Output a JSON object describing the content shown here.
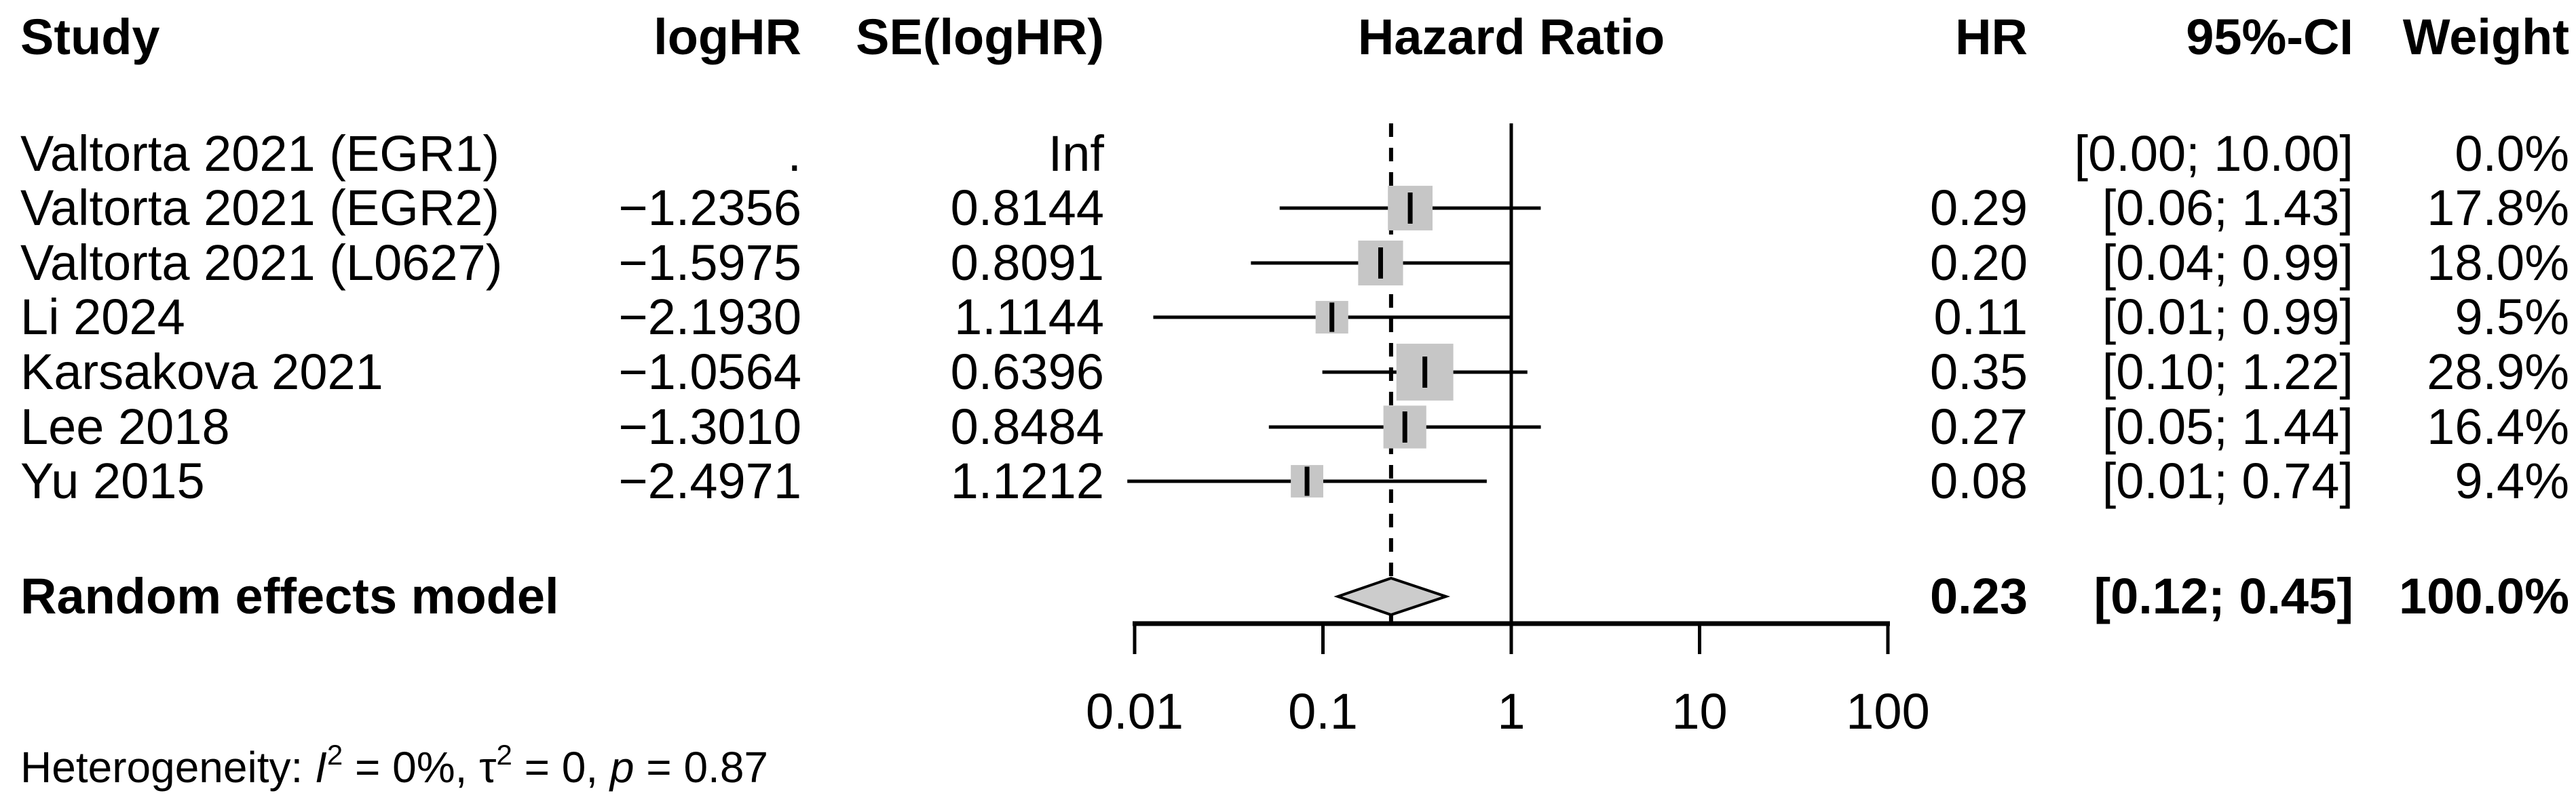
{
  "header": {
    "study": "Study",
    "loghr": "logHR",
    "se": "SE(logHR)",
    "plot": "Hazard Ratio",
    "hr": "HR",
    "ci": "95%-CI",
    "weight": "Weight"
  },
  "studies": [
    {
      "name": "Valtorta 2021 (EGR1)",
      "loghr": ".",
      "se": "Inf",
      "hr": "",
      "ci": "[0.00; 10.00]",
      "weight": "0.0%"
    },
    {
      "name": "Valtorta 2021 (EGR2)",
      "loghr": "−1.2356",
      "se": "0.8144",
      "hr": "0.29",
      "ci": "[0.06; 1.43]",
      "weight": "17.8%"
    },
    {
      "name": "Valtorta 2021 (L0627)",
      "loghr": "−1.5975",
      "se": "0.8091",
      "hr": "0.20",
      "ci": "[0.04; 0.99]",
      "weight": "18.0%"
    },
    {
      "name": "Li 2024",
      "loghr": "−2.1930",
      "se": "1.1144",
      "hr": "0.11",
      "ci": "[0.01; 0.99]",
      "weight": "9.5%"
    },
    {
      "name": "Karsakova 2021",
      "loghr": "−1.0564",
      "se": "0.6396",
      "hr": "0.35",
      "ci": "[0.10; 1.22]",
      "weight": "28.9%"
    },
    {
      "name": "Lee 2018",
      "loghr": "−1.3010",
      "se": "0.8484",
      "hr": "0.27",
      "ci": "[0.05; 1.44]",
      "weight": "16.4%"
    },
    {
      "name": "Yu 2015",
      "loghr": "−2.4971",
      "se": "1.1212",
      "hr": "0.08",
      "ci": "[0.01; 0.74]",
      "weight": "9.4%"
    }
  ],
  "pooled": {
    "name": "Random effects model",
    "hr": "0.23",
    "ci": "[0.12; 0.45]",
    "weight": "100.0%"
  },
  "heterogeneity": {
    "prefix": "Heterogeneity: ",
    "i": "I",
    "sup1": "2",
    "mid1": " = 0%, ",
    "tau": "τ",
    "sup2": "2",
    "mid2": " = 0, ",
    "p": "p",
    "end": " = 0.87"
  },
  "axis": {
    "tick_labels": [
      "0.01",
      "0.1",
      "1",
      "10",
      "100"
    ]
  },
  "colors": {
    "square": "#c6c6c6",
    "diamond_fill": "#cccccc",
    "line": "#000000"
  },
  "chart_data": {
    "type": "forest",
    "title": "Hazard Ratio",
    "x_axis": {
      "scale": "log10",
      "range": [
        0.01,
        100
      ],
      "ticks": [
        0.01,
        0.1,
        1,
        10,
        100
      ]
    },
    "reference_line": 1,
    "pooled_estimate_line": 0.23,
    "studies": [
      {
        "name": "Valtorta 2021 (EGR1)",
        "logHR": null,
        "SE": null,
        "hr": null,
        "ci": [
          0.0,
          10.0
        ],
        "weight_pct": 0.0,
        "plotted": false
      },
      {
        "name": "Valtorta 2021 (EGR2)",
        "logHR": -1.2356,
        "SE": 0.8144,
        "hr": 0.29,
        "ci": [
          0.06,
          1.43
        ],
        "weight_pct": 17.8,
        "plotted": true
      },
      {
        "name": "Valtorta 2021 (L0627)",
        "logHR": -1.5975,
        "SE": 0.8091,
        "hr": 0.2,
        "ci": [
          0.04,
          0.99
        ],
        "weight_pct": 18.0,
        "plotted": true
      },
      {
        "name": "Li 2024",
        "logHR": -2.193,
        "SE": 1.1144,
        "hr": 0.11,
        "ci": [
          0.01,
          0.99
        ],
        "weight_pct": 9.5,
        "plotted": true
      },
      {
        "name": "Karsakova 2021",
        "logHR": -1.0564,
        "SE": 0.6396,
        "hr": 0.35,
        "ci": [
          0.1,
          1.22
        ],
        "weight_pct": 28.9,
        "plotted": true
      },
      {
        "name": "Lee 2018",
        "logHR": -1.301,
        "SE": 0.8484,
        "hr": 0.27,
        "ci": [
          0.05,
          1.44
        ],
        "weight_pct": 16.4,
        "plotted": true
      },
      {
        "name": "Yu 2015",
        "logHR": -2.4971,
        "SE": 1.1212,
        "hr": 0.08,
        "ci": [
          0.01,
          0.74
        ],
        "weight_pct": 9.4,
        "plotted": true
      }
    ],
    "pooled": {
      "model": "Random effects model",
      "hr": 0.23,
      "ci": [
        0.12,
        0.45
      ],
      "weight_pct": 100.0
    },
    "heterogeneity": {
      "I2": "0%",
      "tau2": "0",
      "p": "0.87"
    }
  }
}
